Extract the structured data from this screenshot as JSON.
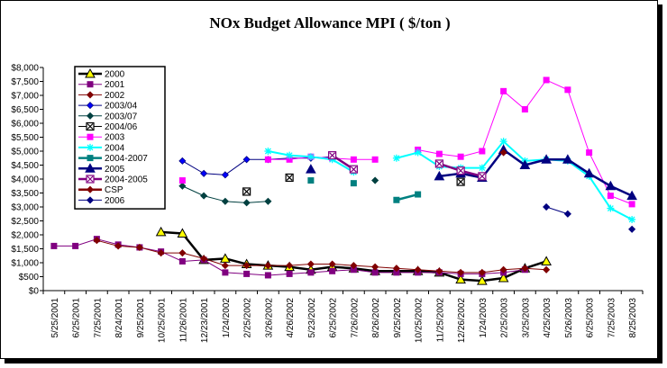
{
  "chart_data": {
    "type": "line",
    "title": "NOx Budget Allowance MPI  ( $/ton )",
    "ylim": [
      0,
      8000
    ],
    "y_ticks": [
      "$0",
      "$500",
      "$1,000",
      "$1,500",
      "$2,000",
      "$2,500",
      "$3,000",
      "$3,500",
      "$4,000",
      "$4,500",
      "$5,000",
      "$5,500",
      "$6,000",
      "$6,500",
      "$7,000",
      "$7,500",
      "$8,000"
    ],
    "x": [
      "2001-05-25",
      "2001-06-25",
      "2001-07-25",
      "2001-08-24",
      "2001-09-25",
      "2001-10-25",
      "2001-11-26",
      "2001-12-23",
      "2002-01-24",
      "2002-02-25",
      "2002-03-26",
      "2002-04-26",
      "2002-05-23",
      "2002-06-25",
      "2002-07-26",
      "2002-08-26",
      "2002-09-25",
      "2002-10-25",
      "2002-11-25",
      "2002-12-26",
      "2003-01-24",
      "2003-02-25",
      "2003-03-25",
      "2003-04-25",
      "2003-05-26",
      "2003-06-25",
      "2003-07-25",
      "2003-08-25"
    ],
    "x_tick_labels": [
      "5/25/2001",
      "6/25/2001",
      "7/25/2001",
      "8/24/2001",
      "9/25/2001",
      "10/25/2001",
      "11/26/2001",
      "12/23/2001",
      "1/24/2002",
      "2/25/2002",
      "3/26/2002",
      "4/26/2002",
      "5/23/2002",
      "6/25/2002",
      "7/26/2002",
      "8/26/2002",
      "9/25/2002",
      "10/25/2002",
      "11/25/2002",
      "12/26/2002",
      "1/24/2003",
      "2/25/2003",
      "3/25/2003",
      "4/25/2003",
      "5/26/2003",
      "6/25/2003",
      "7/25/2003",
      "8/25/2003"
    ],
    "legend_position": "top-left",
    "grid": false,
    "series": [
      {
        "name": "2000",
        "color": "#000000",
        "marker": "triangle",
        "marker_fill": "#ffff00",
        "width": 2.5,
        "values": [
          null,
          null,
          null,
          null,
          null,
          2100,
          2050,
          1100,
          1150,
          950,
          900,
          850,
          750,
          850,
          800,
          700,
          700,
          700,
          650,
          400,
          350,
          450,
          800,
          1050,
          null,
          null,
          null,
          null
        ]
      },
      {
        "name": "2001",
        "color": "#800080",
        "marker": "square",
        "marker_fill": "#800080",
        "width": 1,
        "values": [
          1600,
          1600,
          1850,
          1650,
          1550,
          1400,
          1050,
          1100,
          650,
          600,
          550,
          600,
          650,
          700,
          750,
          650,
          650,
          650,
          650,
          600,
          600,
          650,
          750,
          null,
          null,
          null,
          null,
          null
        ]
      },
      {
        "name": "2002",
        "color": "#800000",
        "marker": "diamond",
        "marker_fill": "#800000",
        "width": 1,
        "values": [
          null,
          null,
          1800,
          1600,
          1550,
          1350,
          1350,
          1150,
          900,
          900,
          900,
          900,
          950,
          950,
          900,
          850,
          800,
          750,
          700,
          650,
          650,
          750,
          800,
          750,
          null,
          null,
          null,
          null
        ]
      },
      {
        "name": "2003/04",
        "color": "#000080",
        "marker": "diamond",
        "marker_fill": "#0000ff",
        "width": 1,
        "values": [
          null,
          null,
          null,
          null,
          null,
          null,
          4650,
          4200,
          4150,
          4700,
          4700,
          4750,
          4750,
          4800,
          null,
          null,
          null,
          null,
          null,
          null,
          null,
          null,
          null,
          null,
          null,
          null,
          null,
          null
        ]
      },
      {
        "name": "2003/07",
        "color": "#004040",
        "marker": "diamond",
        "marker_fill": "#004040",
        "width": 1,
        "values": [
          null,
          null,
          null,
          null,
          null,
          null,
          3750,
          3400,
          3200,
          3150,
          3200,
          null,
          null,
          null,
          null,
          3950,
          null,
          null,
          null,
          null,
          null,
          null,
          null,
          null,
          null,
          null,
          null,
          null
        ]
      },
      {
        "name": "2004/06",
        "color": "#000000",
        "marker": "xbox",
        "marker_fill": "#ffffff",
        "width": 1,
        "values": [
          null,
          null,
          null,
          null,
          null,
          null,
          null,
          null,
          null,
          3550,
          null,
          4050,
          null,
          null,
          null,
          null,
          null,
          null,
          null,
          3900,
          null,
          null,
          null,
          null,
          null,
          null,
          null,
          null
        ]
      },
      {
        "name": "2003",
        "color": "#ff00ff",
        "marker": "square",
        "marker_fill": "#ff00ff",
        "width": 1,
        "values": [
          null,
          null,
          null,
          null,
          null,
          null,
          3950,
          null,
          null,
          null,
          4700,
          4700,
          4800,
          4750,
          4700,
          4700,
          null,
          5050,
          4900,
          4800,
          5000,
          7150,
          6500,
          7550,
          7200,
          4950,
          3400,
          3100
        ]
      },
      {
        "name": "2004",
        "color": "#00ffff",
        "marker": "star",
        "marker_fill": "#00ffff",
        "width": 2,
        "values": [
          null,
          null,
          null,
          null,
          null,
          null,
          null,
          null,
          null,
          null,
          5000,
          4850,
          4800,
          4700,
          4250,
          null,
          4750,
          4950,
          4450,
          4400,
          4400,
          5350,
          4650,
          4700,
          4650,
          4100,
          2950,
          2550
        ]
      },
      {
        "name": "2004-2007",
        "color": "#008080",
        "marker": "square",
        "marker_fill": "#008080",
        "width": 2.5,
        "values": [
          null,
          null,
          null,
          null,
          null,
          null,
          null,
          null,
          null,
          null,
          null,
          null,
          3950,
          null,
          3850,
          null,
          3250,
          3450,
          null,
          null,
          null,
          null,
          null,
          null,
          null,
          null,
          null,
          null
        ]
      },
      {
        "name": "2005",
        "color": "#000080",
        "marker": "triangle",
        "marker_fill": "#000080",
        "width": 2.5,
        "values": [
          null,
          null,
          null,
          null,
          null,
          null,
          null,
          null,
          null,
          null,
          null,
          null,
          4350,
          null,
          null,
          null,
          null,
          null,
          4100,
          4200,
          4050,
          5050,
          4500,
          4700,
          4700,
          4200,
          3750,
          3400
        ]
      },
      {
        "name": "2004-2005",
        "color": "#800080",
        "marker": "xbox",
        "marker_fill": "#ffffff",
        "width": 2.5,
        "values": [
          null,
          null,
          null,
          null,
          null,
          null,
          null,
          null,
          null,
          null,
          null,
          null,
          null,
          4850,
          4350,
          null,
          null,
          null,
          4550,
          4300,
          4100,
          null,
          null,
          null,
          null,
          null,
          null,
          null
        ]
      },
      {
        "name": "CSP",
        "color": "#800000",
        "marker": "diamond",
        "marker_fill": "#800000",
        "width": 2.5,
        "values": [
          null,
          null,
          null,
          null,
          null,
          null,
          null,
          null,
          null,
          null,
          null,
          null,
          null,
          null,
          null,
          null,
          null,
          null,
          null,
          null,
          null,
          4950,
          null,
          null,
          null,
          null,
          null,
          null
        ]
      },
      {
        "name": "2006",
        "color": "#000080",
        "marker": "diamond",
        "marker_fill": "#000080",
        "width": 1,
        "values": [
          null,
          null,
          null,
          null,
          null,
          null,
          null,
          null,
          null,
          null,
          null,
          null,
          null,
          null,
          null,
          null,
          null,
          null,
          null,
          null,
          null,
          null,
          null,
          3000,
          2750,
          null,
          null,
          2200
        ]
      }
    ]
  }
}
